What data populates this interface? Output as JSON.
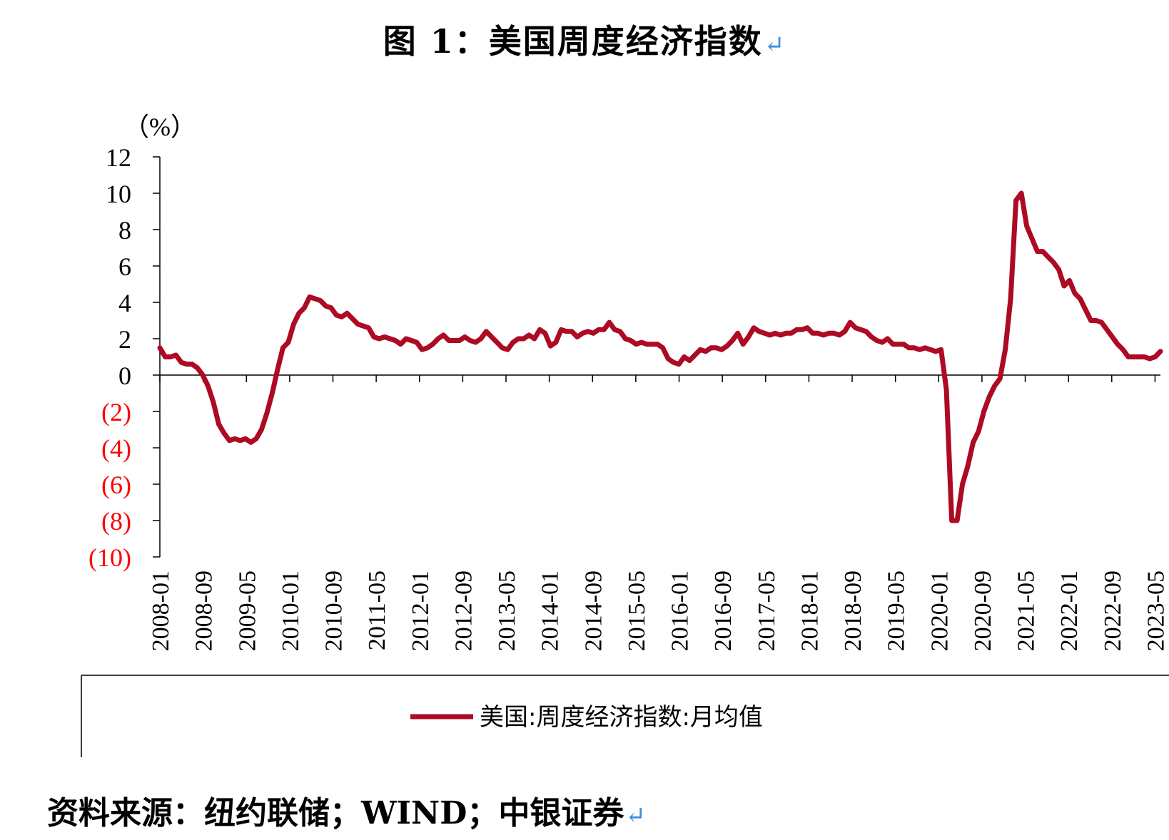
{
  "header": {
    "title": "图 1：美国周度经济指数",
    "return_mark": "↵"
  },
  "footer": {
    "source": "资料来源：纽约联储；WIND；中银证券",
    "return_mark": "↵"
  },
  "colors": {
    "series": "#ad0a23",
    "negative_label": "#ff0000"
  },
  "chart_data": {
    "type": "line",
    "title": "图 1：美国周度经济指数",
    "ylabel": "（%）",
    "ylim": [
      -10,
      12
    ],
    "y_ticks": [
      {
        "value": 12,
        "label": "12"
      },
      {
        "value": 10,
        "label": "10"
      },
      {
        "value": 8,
        "label": "8"
      },
      {
        "value": 6,
        "label": "6"
      },
      {
        "value": 4,
        "label": "4"
      },
      {
        "value": 2,
        "label": "2"
      },
      {
        "value": 0,
        "label": "0"
      },
      {
        "value": -2,
        "label": "(2)"
      },
      {
        "value": -4,
        "label": "(4)"
      },
      {
        "value": -6,
        "label": "(6)"
      },
      {
        "value": -8,
        "label": "(8)"
      },
      {
        "value": -10,
        "label": "(10)"
      }
    ],
    "x_tick_labels": [
      "2008-01",
      "2008-09",
      "2009-05",
      "2010-01",
      "2010-09",
      "2011-05",
      "2012-01",
      "2012-09",
      "2013-05",
      "2014-01",
      "2014-09",
      "2015-05",
      "2016-01",
      "2016-09",
      "2017-05",
      "2018-01",
      "2018-09",
      "2019-05",
      "2020-01",
      "2020-09",
      "2021-05",
      "2022-01",
      "2022-09",
      "2023-05"
    ],
    "x_start": "2008-01",
    "x_end": "2023-06",
    "legend": "bottom",
    "series": [
      {
        "name": "美国:周度经济指数:月均值",
        "values": [
          1.5,
          1.0,
          1.0,
          1.1,
          0.7,
          0.6,
          0.6,
          0.4,
          0.0,
          -0.6,
          -1.5,
          -2.7,
          -3.2,
          -3.6,
          -3.5,
          -3.6,
          -3.5,
          -3.7,
          -3.5,
          -3.0,
          -2.1,
          -1.0,
          0.3,
          1.5,
          1.8,
          2.8,
          3.4,
          3.7,
          4.3,
          4.2,
          4.1,
          3.8,
          3.7,
          3.3,
          3.2,
          3.4,
          3.1,
          2.8,
          2.7,
          2.6,
          2.1,
          2.0,
          2.1,
          2.0,
          1.9,
          1.7,
          2.0,
          1.9,
          1.8,
          1.4,
          1.5,
          1.7,
          2.0,
          2.2,
          1.9,
          1.9,
          1.9,
          2.1,
          1.9,
          1.8,
          2.0,
          2.4,
          2.1,
          1.8,
          1.5,
          1.4,
          1.8,
          2.0,
          2.0,
          2.2,
          2.0,
          2.5,
          2.3,
          1.6,
          1.8,
          2.5,
          2.4,
          2.4,
          2.1,
          2.3,
          2.4,
          2.3,
          2.5,
          2.5,
          2.9,
          2.5,
          2.4,
          2.0,
          1.9,
          1.7,
          1.8,
          1.7,
          1.7,
          1.7,
          1.5,
          0.9,
          0.7,
          0.6,
          1.0,
          0.8,
          1.1,
          1.4,
          1.3,
          1.5,
          1.5,
          1.4,
          1.6,
          1.9,
          2.3,
          1.7,
          2.1,
          2.6,
          2.4,
          2.3,
          2.2,
          2.3,
          2.2,
          2.3,
          2.3,
          2.5,
          2.5,
          2.6,
          2.3,
          2.3,
          2.2,
          2.3,
          2.3,
          2.2,
          2.4,
          2.9,
          2.6,
          2.5,
          2.4,
          2.1,
          1.9,
          1.8,
          2.0,
          1.7,
          1.7,
          1.7,
          1.5,
          1.5,
          1.4,
          1.5,
          1.4,
          1.3,
          1.4,
          -0.8,
          -8.0,
          -8.0,
          -6.0,
          -5.0,
          -3.7,
          -3.1,
          -2.0,
          -1.2,
          -0.6,
          -0.2,
          1.4,
          4.2,
          9.6,
          10.0,
          8.2,
          7.5,
          6.8,
          6.8,
          6.5,
          6.2,
          5.8,
          4.9,
          5.2,
          4.5,
          4.2,
          3.6,
          3.0,
          3.0,
          2.9,
          2.5,
          2.1,
          1.7,
          1.4,
          1.0,
          1.0,
          1.0,
          1.0,
          0.9,
          1.0,
          1.3
        ]
      }
    ]
  }
}
